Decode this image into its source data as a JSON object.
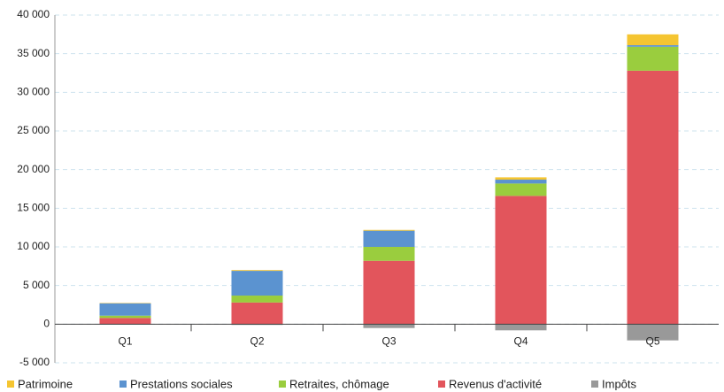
{
  "chart_data": {
    "type": "stacked_bar",
    "categories": [
      "Q1",
      "Q2",
      "Q3",
      "Q4",
      "Q5"
    ],
    "series": [
      {
        "name": "Patrimoine",
        "color": "#f5c531",
        "values": [
          50,
          100,
          100,
          300,
          1400
        ]
      },
      {
        "name": "Prestations sociales",
        "color": "#5b93d0",
        "values": [
          1600,
          3200,
          2100,
          500,
          200
        ]
      },
      {
        "name": "Retraites, chômage",
        "color": "#9acd3e",
        "values": [
          300,
          900,
          1800,
          1600,
          3100
        ]
      },
      {
        "name": "Revenus d'activité",
        "color": "#e2555c",
        "values": [
          800,
          2800,
          8200,
          16600,
          32800
        ]
      },
      {
        "name": "Impôts",
        "color": "#999999",
        "values": [
          -50,
          -100,
          -500,
          -800,
          -2100
        ]
      }
    ],
    "ylim": [
      -5000,
      40000
    ],
    "yticks": [
      {
        "value": -5000,
        "label": "-5 000"
      },
      0,
      {
        "value": 5000,
        "label": "5 000"
      },
      {
        "value": 10000,
        "label": "10 000"
      },
      {
        "value": 15000,
        "label": "15 000"
      },
      {
        "value": 20000,
        "label": "20 000"
      },
      {
        "value": 25000,
        "label": "25 000"
      },
      {
        "value": 30000,
        "label": "30 000"
      },
      {
        "value": 35000,
        "label": "35 000"
      },
      {
        "value": 40000,
        "label": "40 000"
      }
    ],
    "grid": true,
    "legend": "bottom"
  }
}
